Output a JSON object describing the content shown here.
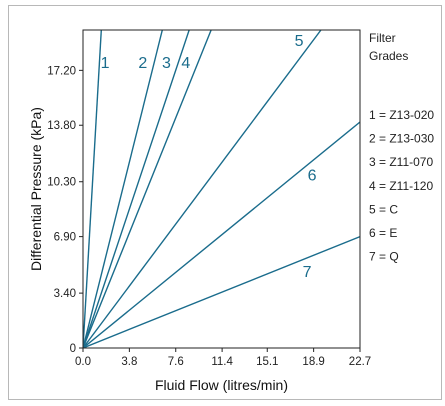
{
  "chart_data": {
    "type": "line",
    "xlabel": "Fluid Flow (litres/min)",
    "ylabel": "Differential Pressure (kPa)",
    "xlim": [
      0,
      22.7
    ],
    "ylim": [
      0,
      19.7
    ],
    "x_ticks": [
      {
        "value": 0,
        "label": "0.0"
      },
      {
        "value": 3.8,
        "label": "3.8"
      },
      {
        "value": 7.6,
        "label": "7.6"
      },
      {
        "value": 11.4,
        "label": "11.4"
      },
      {
        "value": 15.1,
        "label": "15.1"
      },
      {
        "value": 18.9,
        "label": "18.9"
      },
      {
        "value": 22.7,
        "label": "22.7"
      }
    ],
    "y_ticks": [
      {
        "value": 0,
        "label": "0"
      },
      {
        "value": 3.4,
        "label": "3.40"
      },
      {
        "value": 6.9,
        "label": "6.90"
      },
      {
        "value": 10.3,
        "label": "10.30"
      },
      {
        "value": 13.8,
        "label": "13.80"
      },
      {
        "value": 17.2,
        "label": "17.20"
      }
    ],
    "grid": false,
    "line_color": "#1a6c8c",
    "series": [
      {
        "name": "1",
        "x": [
          0,
          1.5
        ],
        "y": [
          0,
          19.7
        ]
      },
      {
        "name": "2",
        "x": [
          0,
          6.5
        ],
        "y": [
          0,
          19.7
        ]
      },
      {
        "name": "3",
        "x": [
          0,
          8.7
        ],
        "y": [
          0,
          19.7
        ]
      },
      {
        "name": "4",
        "x": [
          0,
          10.5
        ],
        "y": [
          0,
          19.7
        ]
      },
      {
        "name": "5",
        "x": [
          0,
          19.5
        ],
        "y": [
          0,
          19.7
        ]
      },
      {
        "name": "6",
        "x": [
          0,
          22.7
        ],
        "y": [
          0,
          14.0
        ]
      },
      {
        "name": "7",
        "x": [
          0,
          22.7
        ],
        "y": [
          0,
          6.9
        ]
      }
    ],
    "legend": {
      "title_lines": [
        "Filter",
        "Grades"
      ],
      "entries": [
        "1 = Z13-020",
        "2 = Z13-030",
        "3 = Z11-070",
        "4 = Z11-120",
        "5 = C",
        "6 = E",
        "7 = Q"
      ]
    }
  }
}
